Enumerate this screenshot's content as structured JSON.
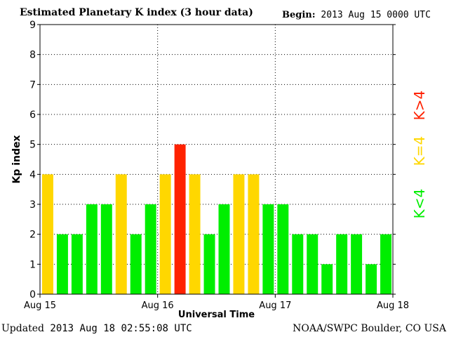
{
  "header": {
    "title": "Estimated Planetary K index (3 hour data)",
    "begin_label": "Begin:",
    "begin_value": "2013 Aug 15 0000 UTC"
  },
  "footer": {
    "updated_label": "Updated",
    "updated_value": "2013 Aug 18 02:55:08 UTC",
    "source": "NOAA/SWPC Boulder, CO USA"
  },
  "chart_data": {
    "type": "bar",
    "title": "Estimated Planetary K index (3 hour data)",
    "xlabel": "Universal Time",
    "ylabel": "Kp index",
    "ylim": [
      0,
      9
    ],
    "yticks": [
      0,
      1,
      2,
      3,
      4,
      5,
      6,
      7,
      8,
      9
    ],
    "xticks": [
      "Aug 15",
      "Aug 16",
      "Aug 17",
      "Aug 18"
    ],
    "grid": true,
    "values": [
      4,
      2,
      2,
      3,
      3,
      4,
      2,
      3,
      4,
      5,
      4,
      2,
      3,
      4,
      4,
      3,
      3,
      2,
      2,
      1,
      2,
      2,
      1,
      2
    ],
    "color_rules": [
      {
        "label": "K<4",
        "condition": "lt4",
        "color": "#00ee00"
      },
      {
        "label": "K=4",
        "condition": "eq4",
        "color": "#ffd700"
      },
      {
        "label": "K>4",
        "condition": "gt4",
        "color": "#ff2200"
      }
    ]
  }
}
